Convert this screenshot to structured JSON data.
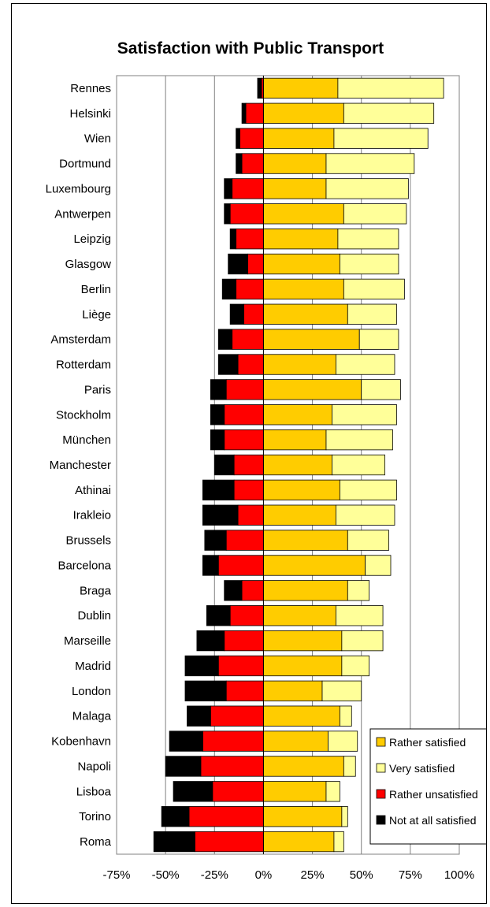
{
  "chart_data": {
    "type": "bar",
    "orientation": "horizontal",
    "stacked": true,
    "title": "Satisfaction with Public Transport",
    "xlabel": "",
    "ylabel": "",
    "xlim": [
      -75,
      100
    ],
    "x_ticks": [
      "-75%",
      "-50%",
      "-25%",
      "0%",
      "25%",
      "50%",
      "75%",
      "100%"
    ],
    "grid": "vertical",
    "legend_position": "bottom-right",
    "categories": [
      "Rennes",
      "Helsinki",
      "Wien",
      "Dortmund",
      "Luxembourg",
      "Antwerpen",
      "Leipzig",
      "Glasgow",
      "Berlin",
      "Liège",
      "Amsterdam",
      "Rotterdam",
      "Paris",
      "Stockholm",
      "München",
      "Manchester",
      "Athinai",
      "Irakleio",
      "Brussels",
      "Barcelona",
      "Braga",
      "Dublin",
      "Marseille",
      "Madrid",
      "London",
      "Malaga",
      "Kobenhavn",
      "Napoli",
      "Lisboa",
      "Torino",
      "Roma"
    ],
    "series": [
      {
        "name": "Rather satisfied",
        "color": "#FFCC00",
        "values": [
          38,
          41,
          36,
          32,
          32,
          41,
          38,
          39,
          41,
          43,
          49,
          37,
          50,
          35,
          32,
          35,
          39,
          37,
          43,
          52,
          43,
          37,
          40,
          40,
          30,
          39,
          33,
          41,
          32,
          40,
          36
        ]
      },
      {
        "name": "Very satisfied",
        "color": "#FFFF99",
        "values": [
          54,
          46,
          48,
          45,
          42,
          32,
          31,
          30,
          31,
          25,
          20,
          30,
          20,
          33,
          34,
          27,
          29,
          30,
          21,
          13,
          11,
          24,
          21,
          14,
          20,
          6,
          15,
          6,
          7,
          3,
          5
        ]
      },
      {
        "name": "Rather unsatisfied",
        "color": "#FF0000",
        "values": [
          -1,
          -9,
          -12,
          -11,
          -16,
          -17,
          -14,
          -8,
          -14,
          -10,
          -16,
          -13,
          -19,
          -20,
          -20,
          -15,
          -15,
          -13,
          -19,
          -23,
          -11,
          -17,
          -20,
          -23,
          -19,
          -27,
          -31,
          -32,
          -26,
          -38,
          -35
        ]
      },
      {
        "name": "Not at all satisfied",
        "color": "#000000",
        "values": [
          -2,
          -2,
          -2,
          -3,
          -4,
          -3,
          -3,
          -10,
          -7,
          -7,
          -7,
          -10,
          -8,
          -7,
          -7,
          -10,
          -16,
          -18,
          -11,
          -8,
          -9,
          -12,
          -14,
          -17,
          -21,
          -12,
          -17,
          -18,
          -20,
          -14,
          -21
        ]
      }
    ],
    "legend_order": [
      "Rather satisfied",
      "Very satisfied",
      "Rather unsatisfied",
      "Not at all satisfied"
    ]
  }
}
